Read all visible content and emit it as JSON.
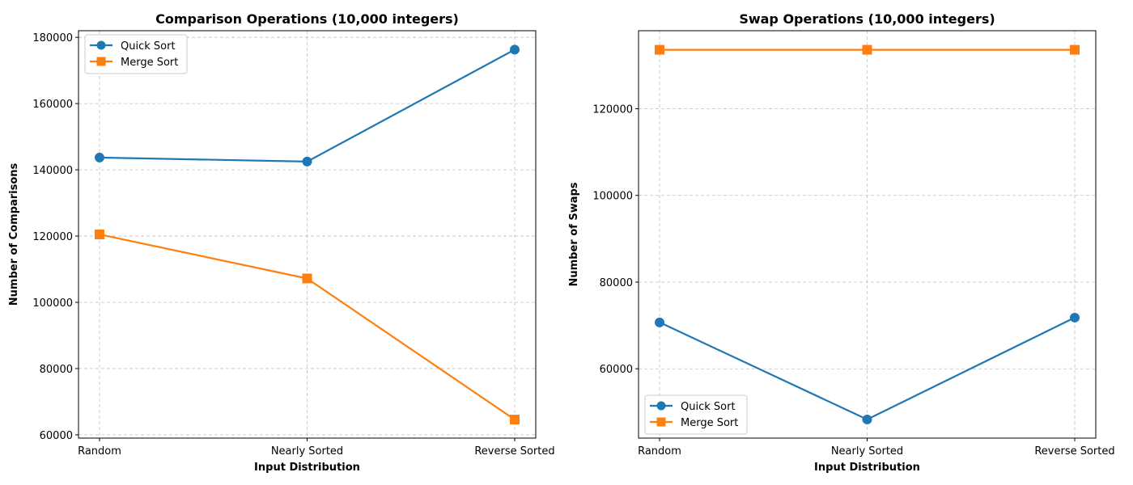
{
  "chart_data": [
    {
      "type": "line",
      "title": "Comparison Operations (10,000 integers)",
      "xlabel": "Input Distribution",
      "ylabel": "Number of Comparisons",
      "categories": [
        "Random",
        "Nearly Sorted",
        "Reverse Sorted"
      ],
      "ylim": [
        59000,
        182000
      ],
      "yticks": [
        60000,
        80000,
        100000,
        120000,
        140000,
        160000,
        180000
      ],
      "grid": true,
      "legend_position": "upper left",
      "series": [
        {
          "name": "Quick Sort",
          "values": [
            143700,
            142500,
            176300
          ],
          "color": "#1f77b4",
          "marker": "circle"
        },
        {
          "name": "Merge Sort",
          "values": [
            120500,
            107200,
            64600
          ],
          "color": "#ff7f0e",
          "marker": "square"
        }
      ]
    },
    {
      "type": "line",
      "title": "Swap Operations (10,000 integers)",
      "xlabel": "Input Distribution",
      "ylabel": "Number of Swaps",
      "categories": [
        "Random",
        "Nearly Sorted",
        "Reverse Sorted"
      ],
      "ylim": [
        44000,
        138000
      ],
      "yticks": [
        60000,
        80000,
        100000,
        120000
      ],
      "grid": true,
      "legend_position": "lower left",
      "series": [
        {
          "name": "Quick Sort",
          "values": [
            70700,
            48300,
            71800
          ],
          "color": "#1f77b4",
          "marker": "circle"
        },
        {
          "name": "Merge Sort",
          "values": [
            133600,
            133600,
            133600
          ],
          "color": "#ff7f0e",
          "marker": "square"
        }
      ]
    }
  ]
}
